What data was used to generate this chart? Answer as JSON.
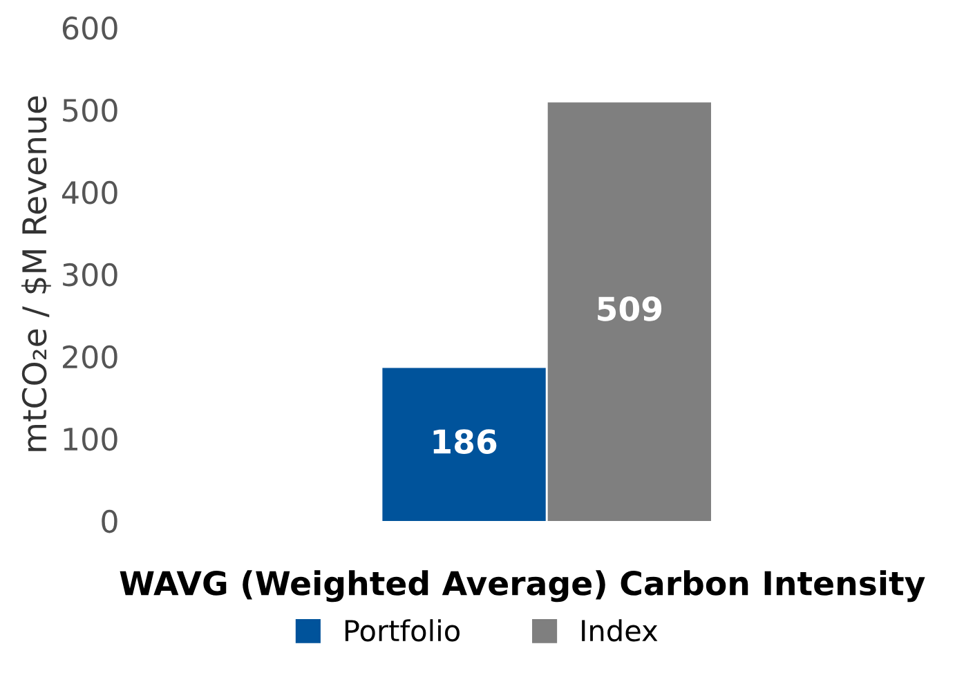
{
  "chart_data": {
    "type": "bar",
    "xlabel": "WAVG (Weighted Average) Carbon Intensity",
    "ylabel": "mtCO₂e / $M Revenue",
    "categories": [
      null
    ],
    "series": [
      {
        "name": "Portfolio",
        "color": "#00539b",
        "values": [
          186
        ]
      },
      {
        "name": "Index",
        "color": "#7f7f7f",
        "values": [
          509
        ]
      }
    ],
    "ylim": [
      0,
      600
    ],
    "yticks": [
      0,
      100,
      200,
      300,
      400,
      500,
      600
    ],
    "data_labels": true,
    "legend": "bottom",
    "grid": false
  }
}
